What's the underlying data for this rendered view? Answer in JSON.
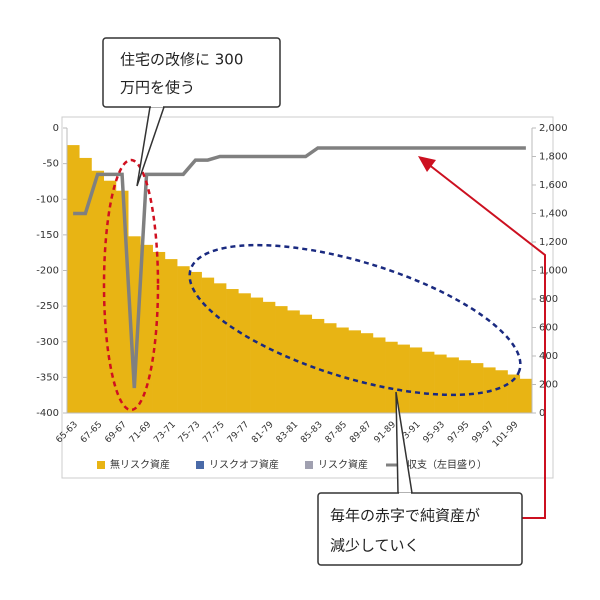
{
  "chart_data": {
    "type": "bar-line",
    "categories": [
      "65-63",
      null,
      "67-65",
      null,
      "69-67",
      null,
      "71-69",
      null,
      "73-71",
      null,
      "75-73",
      null,
      "77-75",
      null,
      "79-77",
      null,
      "81-79",
      null,
      "83-81",
      null,
      "85-83",
      null,
      "87-85",
      null,
      "89-87",
      null,
      "91-89",
      null,
      "93-91",
      null,
      "95-93",
      null,
      "97-95",
      null,
      "99-97",
      null,
      "101-99",
      null
    ],
    "series": [
      {
        "name": "無リスク資産",
        "color": "#e8b414",
        "axis": "y2",
        "values": [
          1880,
          1790,
          1700,
          1630,
          1560,
          1240,
          1180,
          1130,
          1080,
          1030,
          990,
          950,
          910,
          870,
          840,
          810,
          780,
          750,
          720,
          690,
          660,
          630,
          600,
          580,
          560,
          530,
          500,
          480,
          460,
          430,
          410,
          390,
          370,
          350,
          320,
          300,
          270,
          240
        ]
      },
      {
        "name": "リスクオフ資産",
        "color": "#4a6aa8"
      },
      {
        "name": "リスク資産",
        "color": "#a0a0b0"
      },
      {
        "name": "収支（左目盛り）",
        "color": "#808080",
        "values": [
          -120,
          -120,
          -65,
          -65,
          -65,
          -365,
          -65,
          -65,
          -65,
          -65,
          -45,
          -45,
          -40,
          -40,
          -40,
          -40,
          -40,
          -40,
          -40,
          -40,
          -28,
          -28,
          -28,
          -28,
          -28,
          -28,
          -28,
          -28,
          -28,
          -28,
          -28,
          -28,
          -28,
          -28,
          -28,
          -28,
          -28,
          -28
        ]
      }
    ],
    "ylim": [
      -400,
      0
    ],
    "yticks": [
      0,
      -50,
      -100,
      -150,
      -200,
      -250,
      -300,
      -350,
      -400
    ],
    "y2lim": [
      0,
      2000
    ],
    "y2ticks": [
      0,
      200,
      400,
      600,
      800,
      {
        "value": 1000,
        "label": "1,000"
      },
      {
        "value": 1200,
        "label": "1,200"
      },
      {
        "value": 1400,
        "label": "1,400"
      },
      {
        "value": 1600,
        "label": "1,600"
      },
      {
        "value": 1800,
        "label": "1,800"
      },
      {
        "value": 2000,
        "label": "2,000"
      }
    ],
    "annotations": [
      {
        "lines": [
          "住宅の改修に 300",
          "万円を使う"
        ]
      },
      {
        "lines": [
          "毎年の赤字で純資産が",
          "減少していく"
        ]
      }
    ]
  }
}
